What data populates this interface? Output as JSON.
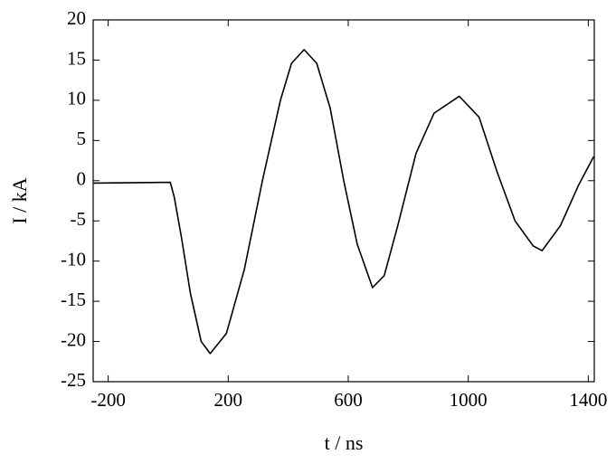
{
  "chart_data": {
    "type": "line",
    "xlabel": "t / ns",
    "ylabel": "I / kA",
    "x": [
      -248,
      7,
      20,
      44,
      74,
      110,
      140,
      194,
      254,
      314,
      374,
      411,
      453,
      495,
      540,
      585,
      630,
      681,
      720,
      765,
      826,
      886,
      970,
      1036,
      1096,
      1156,
      1216,
      1246,
      1307,
      1367,
      1418
    ],
    "series": [
      {
        "color": "#000000",
        "values": [
          -0.3,
          -0.2,
          -2,
          -7,
          -14,
          -20,
          -21.5,
          -19,
          -11,
          0,
          10,
          14.6,
          16.3,
          14.6,
          9,
          0,
          -7.9,
          -13.3,
          -11.8,
          -5.6,
          3.4,
          8.4,
          10.5,
          7.9,
          1.1,
          -5,
          -8.1,
          -8.7,
          -5.6,
          -0.6,
          3
        ]
      }
    ],
    "xlim": [
      -250,
      1420
    ],
    "xticks": [
      -200,
      200,
      600,
      1000,
      1400
    ],
    "ylim": [
      -25,
      20
    ],
    "yticks": [
      -25,
      -20,
      -15,
      -10,
      -5,
      0,
      5,
      10,
      15,
      20
    ]
  }
}
